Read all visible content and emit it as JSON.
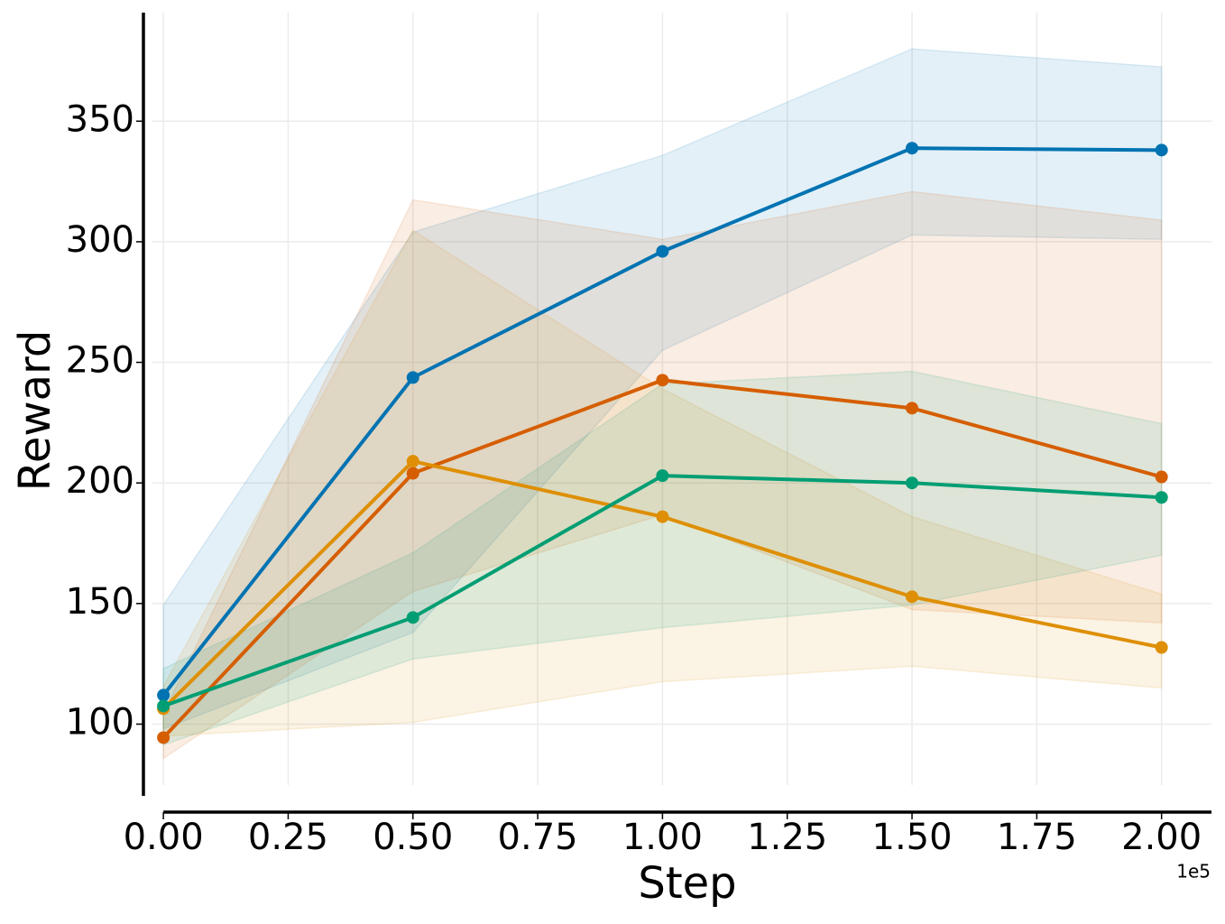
{
  "chart_data": {
    "type": "line",
    "xlabel": "Step",
    "ylabel": "Reward",
    "x_offset_label": "1e5",
    "x": [
      0,
      0.5,
      1,
      1.5,
      2
    ],
    "series": [
      {
        "color": "#0173b2",
        "values": [
          112,
          243.7,
          296,
          338.8,
          338
        ],
        "lower": [
          98,
          138,
          255,
          302.8,
          301
        ],
        "upper": [
          149.4,
          304,
          335.8,
          380,
          372.5
        ]
      },
      {
        "color": "#d55e00",
        "values": [
          94.4,
          204,
          242.6,
          231,
          202.5
        ],
        "lower": [
          85.8,
          155,
          186.8,
          147.5,
          142
        ],
        "upper": [
          104.5,
          317.4,
          301,
          320.8,
          309
        ]
      },
      {
        "color": "#de8f05",
        "values": [
          106.4,
          209,
          186,
          152.8,
          131.8
        ],
        "lower": [
          95,
          100.7,
          117.6,
          124,
          115
        ],
        "upper": [
          115.7,
          304.7,
          239,
          186,
          153.9
        ]
      },
      {
        "color": "#029e73",
        "values": [
          107.5,
          144.2,
          203,
          200,
          194
        ],
        "lower": [
          91.4,
          127,
          140,
          149.4,
          170
        ],
        "upper": [
          123,
          171,
          241,
          246.3,
          224.6
        ]
      }
    ],
    "xlim": [
      -0.04,
      2.1
    ],
    "ylim": [
      71,
      395
    ],
    "xticks": [
      {
        "value": 0,
        "label": "0.00"
      },
      {
        "value": 0.25,
        "label": "0.25"
      },
      {
        "value": 0.5,
        "label": "0.50"
      },
      {
        "value": 0.75,
        "label": "0.75"
      },
      {
        "value": 1,
        "label": "1.00"
      },
      {
        "value": 1.25,
        "label": "1.25"
      },
      {
        "value": 1.5,
        "label": "1.50"
      },
      {
        "value": 1.75,
        "label": "1.75"
      },
      {
        "value": 2,
        "label": "2.00"
      }
    ],
    "yticks": [
      100,
      150,
      200,
      250,
      300,
      350
    ],
    "grid": true
  }
}
